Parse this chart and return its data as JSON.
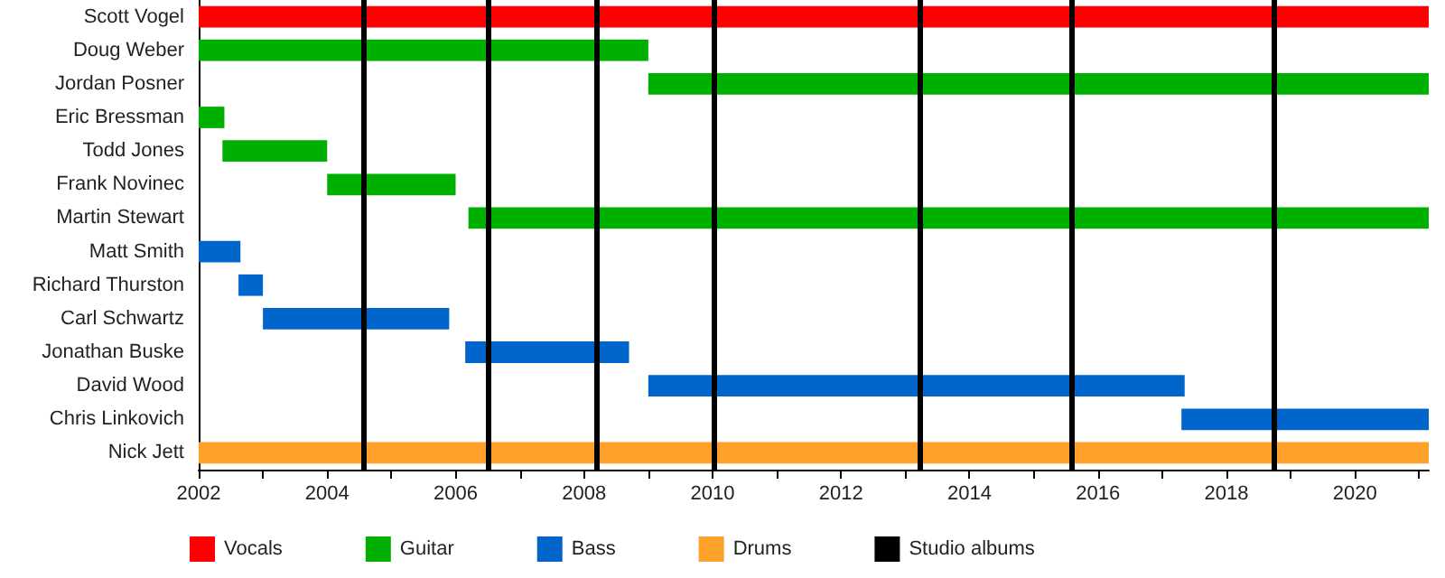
{
  "chart_data": {
    "type": "bar",
    "orientation": "horizontal",
    "categories": [
      "Scott Vogel",
      "Doug Weber",
      "Jordan Posner",
      "Eric Bressman",
      "Todd Jones",
      "Frank Novinec",
      "Martin Stewart",
      "Matt Smith",
      "Richard Thurston",
      "Carl Schwartz",
      "Jonathan Buske",
      "David Wood",
      "Chris Linkovich",
      "Nick Jett"
    ],
    "series": [
      {
        "name": "Vocals",
        "color": "#ff0000",
        "base": [
          2002,
          null,
          null,
          null,
          null,
          null,
          null,
          null,
          null,
          null,
          null,
          null,
          null,
          null
        ],
        "values": [
          19.15,
          null,
          null,
          null,
          null,
          null,
          null,
          null,
          null,
          null,
          null,
          null,
          null,
          null
        ]
      },
      {
        "name": "Guitar",
        "color": "#00b000",
        "base": [
          null,
          2002,
          2009,
          2002,
          2002.37,
          2004,
          2006.2,
          null,
          null,
          null,
          null,
          null,
          null,
          null
        ],
        "values": [
          null,
          7,
          12.15,
          0.4,
          1.63,
          2,
          14.95,
          null,
          null,
          null,
          null,
          null,
          null,
          null
        ]
      },
      {
        "name": "Bass",
        "color": "#0066cc",
        "base": [
          null,
          null,
          null,
          null,
          null,
          null,
          null,
          2002,
          2002.62,
          2003,
          2006.15,
          2009,
          2017.3,
          null
        ],
        "values": [
          null,
          null,
          null,
          null,
          null,
          null,
          null,
          0.65,
          0.38,
          2.9,
          2.55,
          8.35,
          3.85,
          null
        ]
      },
      {
        "name": "Drums",
        "color": "#ffa028",
        "base": [
          null,
          null,
          null,
          null,
          null,
          null,
          null,
          null,
          null,
          null,
          null,
          null,
          null,
          2002
        ],
        "values": [
          null,
          null,
          null,
          null,
          null,
          null,
          null,
          null,
          null,
          null,
          null,
          null,
          null,
          19.15
        ]
      }
    ],
    "ref_lines": [
      {
        "axis": "x",
        "value": 2004.56,
        "label": "Studio albums",
        "color": "#000000"
      },
      {
        "axis": "x",
        "value": 2006.5,
        "color": "#000000"
      },
      {
        "axis": "x",
        "value": 2008.2,
        "color": "#000000"
      },
      {
        "axis": "x",
        "value": 2010.03,
        "color": "#000000"
      },
      {
        "axis": "x",
        "value": 2013.24,
        "color": "#000000"
      },
      {
        "axis": "x",
        "value": 2015.58,
        "color": "#000000"
      },
      {
        "axis": "x",
        "value": 2018.73,
        "color": "#000000"
      }
    ],
    "xlim": [
      2002,
      2021.15
    ],
    "xticks": [
      2002,
      {
        "value": 2003,
        "label": null
      },
      2004,
      {
        "value": 2005,
        "label": null
      },
      2006,
      {
        "value": 2007,
        "label": null
      },
      2008,
      {
        "value": 2009,
        "label": null
      },
      2010,
      {
        "value": 2011,
        "label": null
      },
      2012,
      {
        "value": 2013,
        "label": null
      },
      2014,
      {
        "value": 2015,
        "label": null
      },
      2016,
      {
        "value": 2017,
        "label": null
      },
      2018,
      {
        "value": 2019,
        "label": null
      },
      2020,
      {
        "value": 2021,
        "label": null
      }
    ],
    "grid": false,
    "legend": "bottom"
  }
}
